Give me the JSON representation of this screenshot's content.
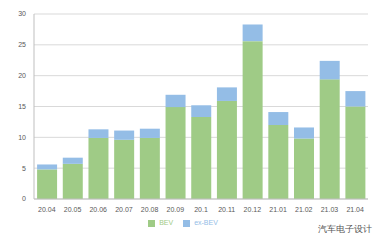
{
  "chart_data": {
    "type": "bar",
    "categories": [
      "20.04",
      "20.05",
      "20.06",
      "20.07",
      "20.08",
      "20.09",
      "20.1",
      "20.11",
      "20.12",
      "21.01",
      "21.02",
      "21.03",
      "21.04"
    ],
    "series": [
      {
        "name": "BEV",
        "color": "#9fcb86",
        "values": [
          4.8,
          5.7,
          9.9,
          9.6,
          9.9,
          14.9,
          13.3,
          15.9,
          25.6,
          12.0,
          9.8,
          19.4,
          15.0
        ]
      },
      {
        "name": "ex-BEV",
        "color": "#94bde6",
        "values": [
          0.8,
          1.0,
          1.4,
          1.5,
          1.5,
          2.0,
          1.9,
          2.2,
          2.7,
          2.1,
          1.8,
          3.0,
          2.5
        ]
      }
    ],
    "ylim": [
      0,
      30
    ],
    "yticks": [
      0,
      5,
      10,
      15,
      20,
      25,
      30
    ],
    "grid": true,
    "stacked": true,
    "legend": "bottom",
    "annotation": "汽车电子设计"
  }
}
